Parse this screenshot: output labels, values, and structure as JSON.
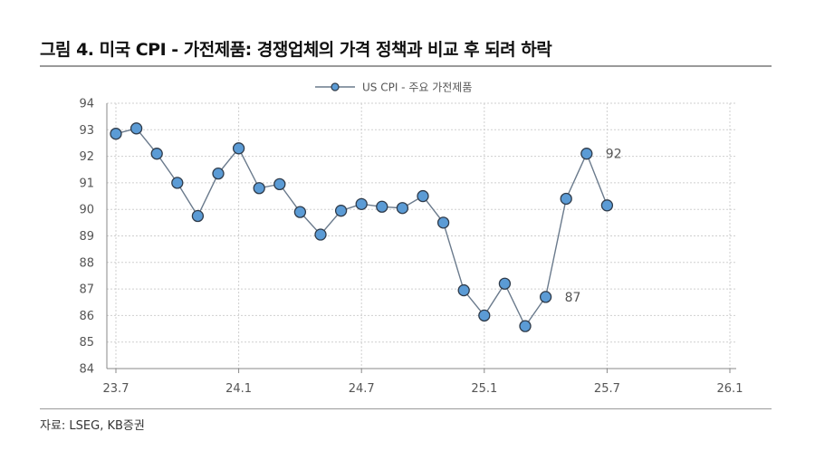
{
  "title": "그림 4. 미국 CPI - 가전제품: 경쟁업체의 가격 정책과 비교 후 되려 하락",
  "source": "자료: LSEG, KB증권",
  "chart_data": {
    "type": "line",
    "x_tick_labels": [
      "23.7",
      "24.1",
      "24.7",
      "25.1",
      "25.7",
      "26.1"
    ],
    "y_ticks": [
      84,
      85,
      86,
      87,
      88,
      89,
      90,
      91,
      92,
      93,
      94
    ],
    "ylim": [
      84,
      94
    ],
    "grid": true,
    "legend_position": "top-center",
    "series": [
      {
        "name": "US CPI - 주요 가전제품",
        "color": "#6a7a8c",
        "marker_fill": "#5b9bd5",
        "x": [
          "2023-07",
          "2023-08",
          "2023-09",
          "2023-10",
          "2023-11",
          "2023-12",
          "2024-01",
          "2024-02",
          "2024-03",
          "2024-04",
          "2024-05",
          "2024-06",
          "2024-07",
          "2024-08",
          "2024-09",
          "2024-10",
          "2024-11",
          "2024-12",
          "2025-01",
          "2025-02",
          "2025-03",
          "2025-04",
          "2025-05",
          "2025-06",
          "2025-07"
        ],
        "values": [
          92.85,
          93.05,
          92.1,
          91.0,
          89.75,
          91.35,
          92.3,
          90.8,
          90.95,
          89.9,
          89.05,
          89.95,
          90.2,
          90.1,
          90.05,
          90.5,
          89.5,
          86.95,
          86.0,
          87.2,
          85.6,
          86.7,
          90.4,
          92.1,
          90.15
        ]
      }
    ],
    "annotations": [
      {
        "text": "92",
        "x": "2025-06"
      },
      {
        "text": "87",
        "x": "2025-04"
      }
    ]
  }
}
